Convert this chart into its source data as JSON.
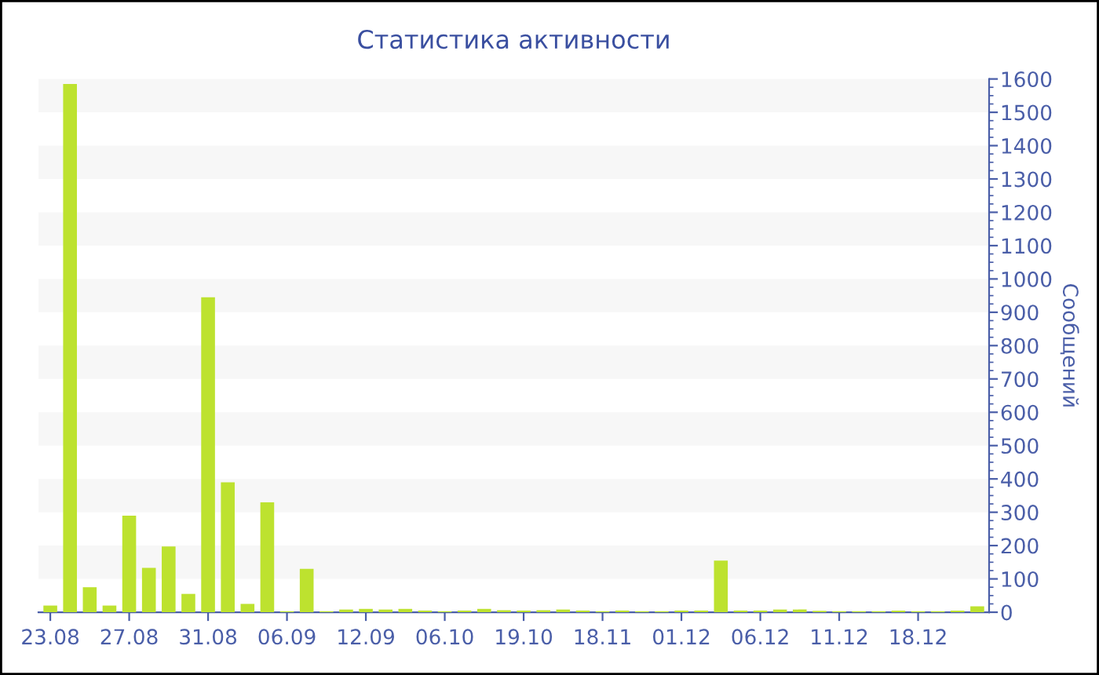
{
  "chart_data": {
    "type": "bar",
    "title": "Статистика активности",
    "ylabel": "Сообщений",
    "categories": [
      "23.08",
      null,
      null,
      null,
      "27.08",
      null,
      null,
      null,
      "31.08",
      null,
      null,
      null,
      "06.09",
      null,
      null,
      null,
      "12.09",
      null,
      null,
      null,
      "06.10",
      null,
      null,
      null,
      "19.10",
      null,
      null,
      null,
      "18.11",
      null,
      null,
      null,
      "01.12",
      null,
      null,
      null,
      "06.12",
      null,
      null,
      null,
      "11.12",
      null,
      null,
      null,
      "18.12",
      null,
      null,
      null
    ],
    "values": [
      20,
      1585,
      75,
      20,
      290,
      133,
      197,
      55,
      945,
      390,
      25,
      330,
      3,
      130,
      3,
      8,
      10,
      8,
      10,
      5,
      3,
      5,
      10,
      6,
      5,
      6,
      8,
      5,
      3,
      5,
      3,
      3,
      5,
      5,
      155,
      5,
      5,
      8,
      8,
      4,
      3,
      3,
      3,
      5,
      3,
      3,
      5,
      18
    ],
    "color": "#bde22f",
    "ylim": [
      0,
      1600
    ],
    "yticks": [
      0,
      100,
      200,
      300,
      400,
      500,
      600,
      700,
      800,
      900,
      1000,
      1100,
      1200,
      1300,
      1400,
      1500,
      1600
    ],
    "bands": [
      {
        "axis": "y",
        "from": 100,
        "to": 200,
        "color": "#f7f7f7"
      },
      {
        "axis": "y",
        "from": 300,
        "to": 400,
        "color": "#f7f7f7"
      },
      {
        "axis": "y",
        "from": 500,
        "to": 600,
        "color": "#f7f7f7"
      },
      {
        "axis": "y",
        "from": 700,
        "to": 800,
        "color": "#f7f7f7"
      },
      {
        "axis": "y",
        "from": 900,
        "to": 1000,
        "color": "#f7f7f7"
      },
      {
        "axis": "y",
        "from": 1100,
        "to": 1200,
        "color": "#f7f7f7"
      },
      {
        "axis": "y",
        "from": 1300,
        "to": 1400,
        "color": "#f7f7f7"
      },
      {
        "axis": "y",
        "from": 1500,
        "to": 1600,
        "color": "#f7f7f7"
      }
    ]
  }
}
